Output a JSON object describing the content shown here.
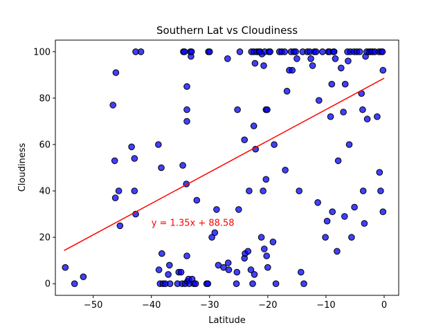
{
  "chart_data": {
    "type": "scatter",
    "title": "Southern Lat vs Cloudiness",
    "xlabel": "Latitude",
    "ylabel": "Cloudiness",
    "xlim": [
      -56.5,
      2.5
    ],
    "ylim": [
      -5,
      105
    ],
    "xticks": [
      -50,
      -40,
      -30,
      -20,
      -10,
      0
    ],
    "yticks": [
      0,
      20,
      40,
      60,
      80,
      100
    ],
    "grid": false,
    "marker_color": "#0000ff",
    "marker_edge": "#000000",
    "line_color": "#ff0000",
    "regression": {
      "slope": 1.35,
      "intercept": 88.58,
      "x_range": [
        -55,
        0
      ]
    },
    "annotation": {
      "text": "y = 1.35x + 88.58",
      "x": -40,
      "y": 25,
      "color": "#ff0000"
    },
    "series": [
      {
        "points": [
          [
            -54.8,
            7
          ],
          [
            -53.2,
            0
          ],
          [
            -51.7,
            3
          ],
          [
            -46.6,
            77
          ],
          [
            -46.3,
            53
          ],
          [
            -46.2,
            37
          ],
          [
            -46.1,
            91
          ],
          [
            -45.6,
            40
          ],
          [
            -45.4,
            25
          ],
          [
            -43.4,
            59
          ],
          [
            -42.9,
            54
          ],
          [
            -42.9,
            40
          ],
          [
            -42.7,
            30
          ],
          [
            -42.7,
            100
          ],
          [
            -41.8,
            100
          ],
          [
            -38.8,
            60
          ],
          [
            -38.7,
            6
          ],
          [
            -38.5,
            0
          ],
          [
            -38.3,
            50
          ],
          [
            -38.2,
            13
          ],
          [
            -38.0,
            0
          ],
          [
            -37.6,
            0
          ],
          [
            -37.1,
            4
          ],
          [
            -36.9,
            8
          ],
          [
            -36.8,
            0
          ],
          [
            -35.5,
            0
          ],
          [
            -35.3,
            5
          ],
          [
            -34.9,
            5
          ],
          [
            -34.7,
            0
          ],
          [
            -34.6,
            51
          ],
          [
            -34.5,
            100
          ],
          [
            -34.3,
            100
          ],
          [
            -34.2,
            0
          ],
          [
            -34.0,
            43
          ],
          [
            -33.9,
            75
          ],
          [
            -33.9,
            70
          ],
          [
            -33.9,
            85
          ],
          [
            -33.9,
            12
          ],
          [
            -33.8,
            1
          ],
          [
            -33.6,
            2
          ],
          [
            -33.5,
            0
          ],
          [
            -33.3,
            100
          ],
          [
            -33.2,
            98
          ],
          [
            -33.1,
            100
          ],
          [
            -33.0,
            2
          ],
          [
            -32.7,
            0
          ],
          [
            -32.4,
            0
          ],
          [
            -32.2,
            36
          ],
          [
            -30.5,
            0
          ],
          [
            -30.3,
            0
          ],
          [
            -30.2,
            100
          ],
          [
            -30.0,
            100
          ],
          [
            -29.6,
            20
          ],
          [
            -29.1,
            22
          ],
          [
            -28.8,
            32
          ],
          [
            -28.5,
            8
          ],
          [
            -27.6,
            7
          ],
          [
            -26.9,
            97
          ],
          [
            -26.8,
            9
          ],
          [
            -26.7,
            6
          ],
          [
            -25.4,
            0
          ],
          [
            -25.3,
            5
          ],
          [
            -25.2,
            75
          ],
          [
            -25.0,
            32
          ],
          [
            -24.8,
            100
          ],
          [
            -24.0,
            62
          ],
          [
            -24.0,
            11
          ],
          [
            -23.9,
            13
          ],
          [
            -23.4,
            14
          ],
          [
            -23.2,
            40
          ],
          [
            -22.9,
            6
          ],
          [
            -22.8,
            100
          ],
          [
            -22.6,
            0
          ],
          [
            -22.4,
            68
          ],
          [
            -22.4,
            100
          ],
          [
            -22.3,
            4
          ],
          [
            -22.2,
            95
          ],
          [
            -22.1,
            58
          ],
          [
            -21.9,
            100
          ],
          [
            -21.5,
            100
          ],
          [
            -21.3,
            100
          ],
          [
            -21.1,
            20
          ],
          [
            -21.0,
            99
          ],
          [
            -20.8,
            40
          ],
          [
            -20.7,
            94
          ],
          [
            -20.6,
            15
          ],
          [
            -20.5,
            100
          ],
          [
            -20.3,
            75
          ],
          [
            -20.3,
            45
          ],
          [
            -20.2,
            12
          ],
          [
            -20.1,
            75
          ],
          [
            -20.0,
            7
          ],
          [
            -19.8,
            100
          ],
          [
            -19.6,
            100
          ],
          [
            -19.1,
            18
          ],
          [
            -18.9,
            60
          ],
          [
            -18.6,
            0
          ],
          [
            -18.0,
            100
          ],
          [
            -17.6,
            100
          ],
          [
            -17.1,
            100
          ],
          [
            -17.0,
            49
          ],
          [
            -16.7,
            83
          ],
          [
            -16.3,
            92
          ],
          [
            -16.0,
            100
          ],
          [
            -15.8,
            92
          ],
          [
            -15.5,
            100
          ],
          [
            -15.2,
            100
          ],
          [
            -15.0,
            97
          ],
          [
            -14.6,
            40
          ],
          [
            -14.3,
            5
          ],
          [
            -14.0,
            100
          ],
          [
            -13.8,
            0
          ],
          [
            -13.2,
            100
          ],
          [
            -12.8,
            100
          ],
          [
            -12.6,
            97
          ],
          [
            -12.3,
            94
          ],
          [
            -12.0,
            100
          ],
          [
            -11.7,
            100
          ],
          [
            -11.4,
            35
          ],
          [
            -11.2,
            79
          ],
          [
            -10.6,
            100
          ],
          [
            -10.1,
            20
          ],
          [
            -9.8,
            27
          ],
          [
            -9.6,
            100
          ],
          [
            -9.4,
            100
          ],
          [
            -9.2,
            72
          ],
          [
            -9.0,
            86
          ],
          [
            -8.9,
            31
          ],
          [
            -8.7,
            100
          ],
          [
            -8.6,
            100
          ],
          [
            -8.4,
            97
          ],
          [
            -8.1,
            14
          ],
          [
            -7.9,
            53
          ],
          [
            -7.4,
            93
          ],
          [
            -7.0,
            74
          ],
          [
            -6.8,
            29
          ],
          [
            -6.7,
            86
          ],
          [
            -6.3,
            100
          ],
          [
            -6.2,
            96
          ],
          [
            -6.0,
            60
          ],
          [
            -5.8,
            100
          ],
          [
            -5.6,
            20
          ],
          [
            -5.2,
            100
          ],
          [
            -5.1,
            33
          ],
          [
            -4.7,
            100
          ],
          [
            -4.2,
            100
          ],
          [
            -3.9,
            82
          ],
          [
            -3.7,
            75
          ],
          [
            -3.6,
            40
          ],
          [
            -3.4,
            26
          ],
          [
            -3.2,
            98
          ],
          [
            -3.0,
            100
          ],
          [
            -2.9,
            71
          ],
          [
            -2.6,
            100
          ],
          [
            -2.3,
            100
          ],
          [
            -2.0,
            100
          ],
          [
            -1.6,
            100
          ],
          [
            -1.2,
            72
          ],
          [
            -0.9,
            100
          ],
          [
            -0.8,
            48
          ],
          [
            -0.6,
            40
          ],
          [
            -0.5,
            100
          ],
          [
            -0.3,
            100
          ],
          [
            -0.2,
            31
          ],
          [
            -0.2,
            92
          ]
        ]
      }
    ]
  }
}
